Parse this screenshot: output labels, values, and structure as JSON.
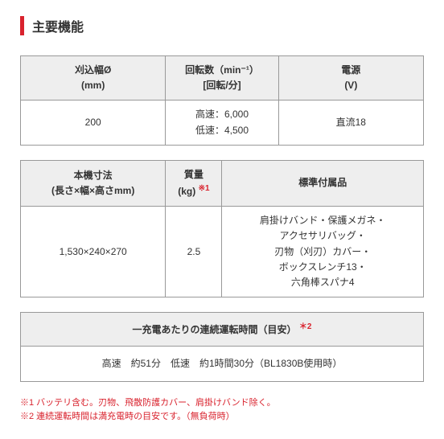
{
  "title": "主要機能",
  "table1": {
    "headers": [
      "刈込幅Ø\n(mm)",
      "回転数（min⁻¹）\n[回転/分]",
      "電源\n(V)"
    ],
    "row": [
      "200",
      "高速：6,000\n低速：4,500",
      "直流18"
    ]
  },
  "table2": {
    "headers": [
      "本機寸法\n(長さ×幅×高さmm)",
      "質量\n(kg)",
      "標準付属品"
    ],
    "header_note_index": 1,
    "header_note_marker": "※1",
    "row": [
      "1,530×240×270",
      "2.5",
      "肩掛けバンド・保護メガネ・\nアクセサリバッグ・\n刃物（刈刃）カバー・\nボックスレンチ13・\n六角棒スパナ4"
    ]
  },
  "table3": {
    "header": "一充電あたりの連続運転時間（目安）",
    "header_marker": "＊2",
    "row": "高速　約51分　低速　約1時間30分（BL1830B使用時）"
  },
  "footnotes": [
    "※1 バッテリ含む。刃物、飛散防護カバー、肩掛けバンド除く。",
    "※2 連続運転時間は満充電時の目安です。（無負荷時）"
  ]
}
